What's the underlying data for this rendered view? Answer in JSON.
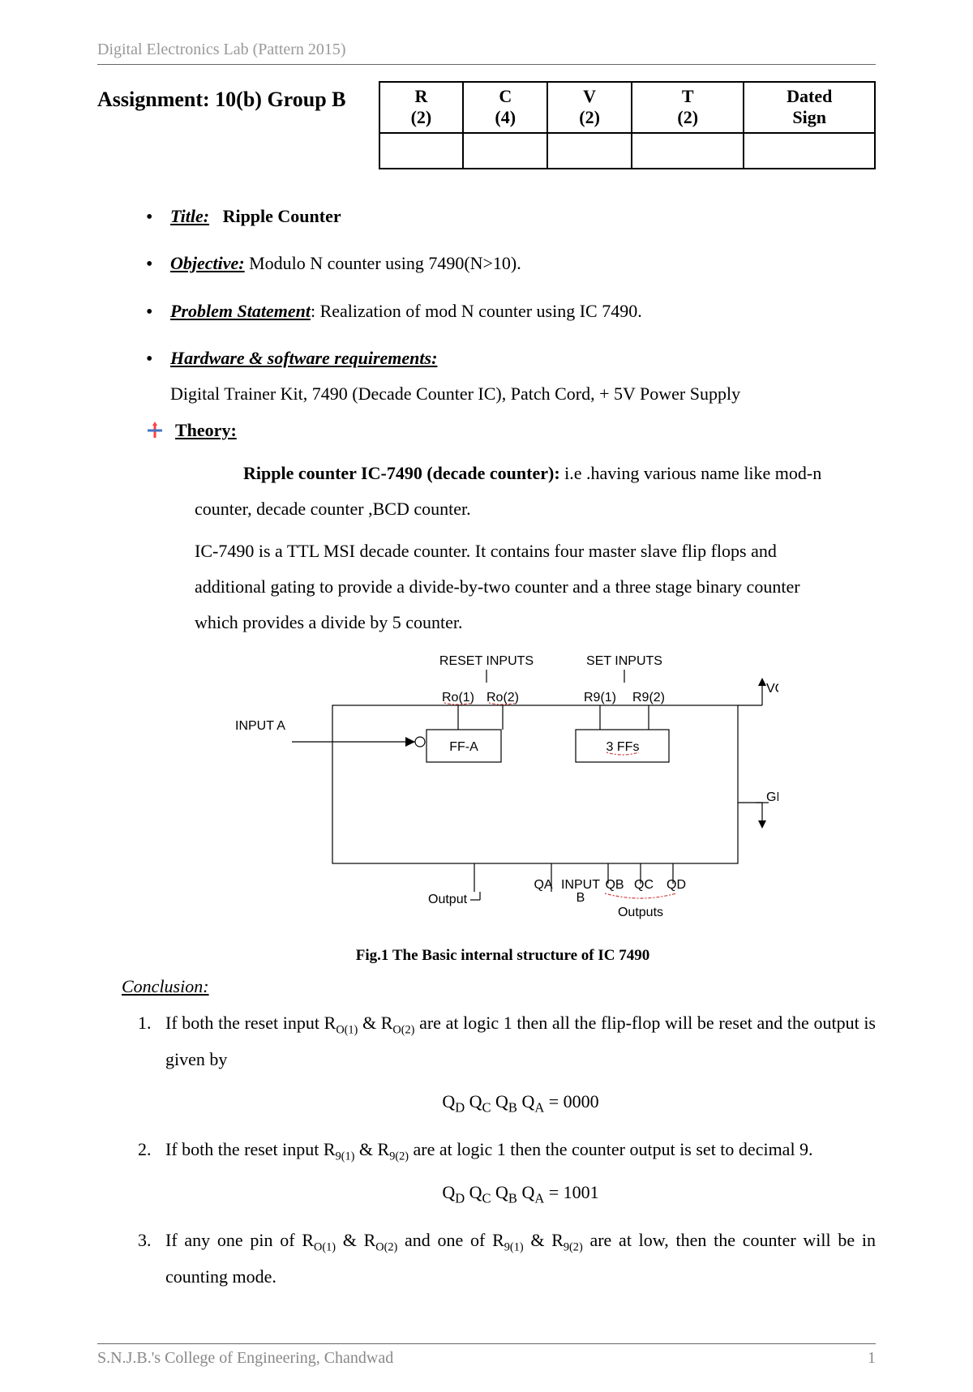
{
  "header": "Digital Electronics Lab (Pattern 2015)",
  "assignment_title": "Assignment: 10(b) Group B",
  "marks": {
    "cols": [
      {
        "h1": "R",
        "h2": "(2)"
      },
      {
        "h1": "C",
        "h2": "(4)"
      },
      {
        "h1": "V",
        "h2": "(2)"
      },
      {
        "h1": "T",
        "h2": "(2)"
      },
      {
        "h1": "Dated",
        "h2": "Sign"
      }
    ]
  },
  "bullets": {
    "title": {
      "label": "Title:",
      "text": "Ripple Counter"
    },
    "objective": {
      "label": "Objective:",
      "text": "Modulo N counter using 7490(N>10)."
    },
    "problem": {
      "label": "Problem Statement",
      "colon": ": ",
      "text": "Realization of mod N counter using IC 7490."
    },
    "hwsw": {
      "label": "Hardware & software requirements:",
      "text": "Digital Trainer Kit, 7490 (Decade Counter IC), Patch Cord, + 5V Power Supply"
    }
  },
  "theory": {
    "label": "Theory:",
    "para1_bold": "Ripple counter IC-7490 (decade counter): ",
    "para1_rest": "i.e .having various name like mod-n counter, decade counter ,BCD counter.",
    "para2": "IC-7490 is a TTL MSI decade counter. It contains four master slave flip flops and additional gating to provide a divide-by-two counter and a three stage binary counter which provides a divide by 5 counter."
  },
  "diagram": {
    "reset_label": "RESET INPUTS",
    "set_label": "SET INPUTS",
    "input_a": "INPUT A",
    "ro1": "Ro(1)",
    "ro2": "Ro(2)",
    "r91": "R9(1)",
    "r92": "R9(2)",
    "vcc": "VCC",
    "ffa": "FF-A",
    "ffs3": "3 FFs",
    "gnd": "GND",
    "qa": "QA",
    "input_b_t": "INPUT",
    "input_b_b": "B",
    "qb": "QB",
    "qc": "QC",
    "qd": "QD",
    "output": "Output",
    "outputs": "Outputs",
    "colors": {
      "line": "#000000",
      "grammar": "#d04040"
    }
  },
  "fig_caption": "Fig.1 The Basic internal structure of IC 7490",
  "conclusion": {
    "label": " Conclusion:",
    "items": {
      "i1a": "If both the reset input R",
      "i1b": " & R",
      "i1c": " are at logic 1 then all the flip-flop will be reset and the output is given by",
      "eq1": "Q<span class=\"sub\">D</span> Q<span class=\"sub\">C</span> Q<span class=\"sub\">B</span> Q<span class=\"sub\">A</span> = 0000",
      "i2a": "If both the reset input R",
      "i2b": "  & R",
      "i2c": " are at logic 1 then the counter output is set to decimal 9.",
      "eq2": "Q<span class=\"sub\">D</span> Q<span class=\"sub\">C</span> Q<span class=\"sub\">B</span> Q<span class=\"sub\">A</span> = 1001",
      "i3a": "If  any one pin of R",
      "i3b": " & R",
      "i3c": " and one of R",
      "i3d": " & R",
      "i3e": " are at low, then the counter will be in counting mode."
    },
    "subscripts": {
      "o1": "O(1)",
      "o2": "O(2)",
      "n91": "9(1)",
      "n92": "9(2)"
    }
  },
  "footer": {
    "left": "S.N.J.B.'s College of Engineering, Chandwad",
    "page": "1"
  }
}
